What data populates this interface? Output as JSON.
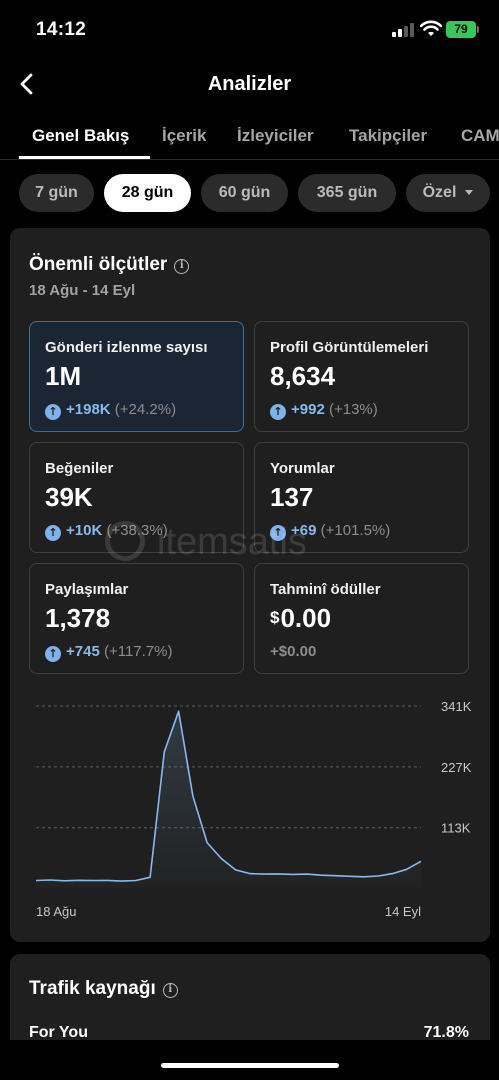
{
  "status_bar": {
    "time": "14:12",
    "battery": "79"
  },
  "header": {
    "title": "Analizler"
  },
  "tabs": [
    {
      "label": "Genel Bakış",
      "active": true
    },
    {
      "label": "İçerik"
    },
    {
      "label": "İzleyiciler"
    },
    {
      "label": "Takipçiler"
    },
    {
      "label": "CAM"
    }
  ],
  "periods": [
    {
      "label": "7 gün"
    },
    {
      "label": "28 gün",
      "active": true
    },
    {
      "label": "60 gün"
    },
    {
      "label": "365 gün"
    },
    {
      "label": "Özel",
      "dropdown": true
    }
  ],
  "key_metrics": {
    "title": "Önemli ölçütler",
    "date_range": "18 Ağu - 14 Eyl",
    "tiles": [
      {
        "label": "Gönderi izlenme sayısı",
        "value": "1M",
        "change_abs": "+198K",
        "change_pct": "(+24.2%)",
        "selected": true
      },
      {
        "label": "Profil Görüntülemeleri",
        "value": "8,634",
        "change_abs": "+992",
        "change_pct": "(+13%)"
      },
      {
        "label": "Beğeniler",
        "value": "39K",
        "change_abs": "+10K",
        "change_pct": "(+38.3%)"
      },
      {
        "label": "Yorumlar",
        "value": "137",
        "change_abs": "+69",
        "change_pct": "(+101.5%)"
      },
      {
        "label": "Paylaşımlar",
        "value": "1,378",
        "change_abs": "+745",
        "change_pct": "(+117.7%)"
      },
      {
        "label": "Tahminî ödüller",
        "currency": "$",
        "value": "0.00",
        "change_abs": "+$0.00",
        "change_pct": ""
      }
    ]
  },
  "chart_data": {
    "type": "area",
    "series": [
      {
        "values": [
          14000,
          15000,
          13500,
          14500,
          14000,
          14200,
          13000,
          14000,
          20000,
          255000,
          331000,
          172000,
          85000,
          55000,
          34000,
          27000,
          26000,
          26500,
          25500,
          26000,
          24000,
          23000,
          22000,
          21000,
          22500,
          27000,
          35000,
          50000
        ]
      }
    ],
    "x_tick_labels": [
      "18 Ağu",
      "14 Eyl"
    ],
    "y_tick_labels": [
      "113K",
      "227K",
      "341K"
    ],
    "y_ticks": [
      113000,
      227000,
      341000
    ],
    "ylim": [
      0,
      341000
    ],
    "grid": "dashed",
    "line_color": "#8ab9ec"
  },
  "traffic": {
    "title": "Trafik kaynağı",
    "rows": [
      {
        "label": "For You",
        "value": "71.8%"
      }
    ]
  },
  "watermark": "itemsatis",
  "colors": {
    "accent": "#8ab9ec",
    "selected_border": "#3d6ea0",
    "battery": "#34c759"
  }
}
